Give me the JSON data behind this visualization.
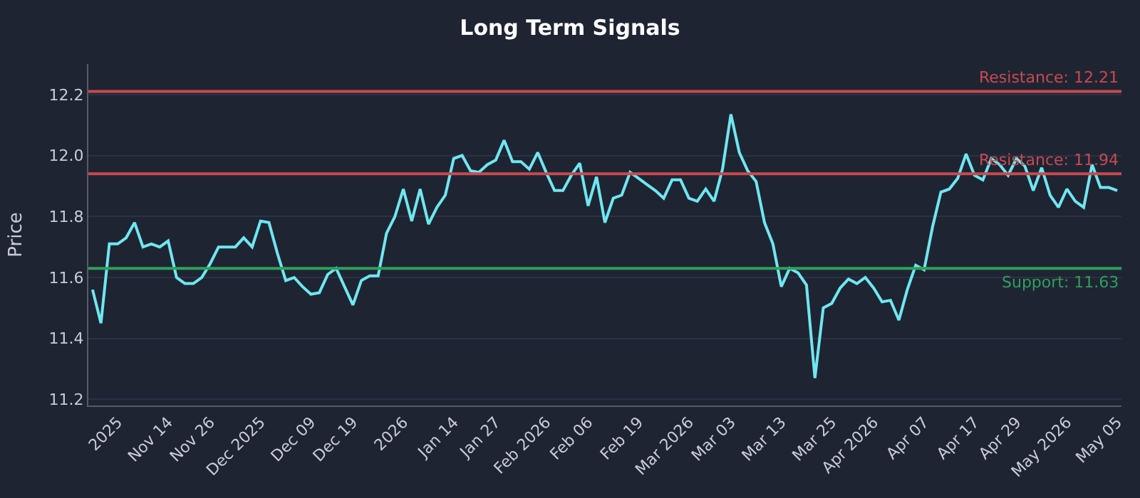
{
  "chart_data": {
    "type": "line",
    "title": "Long Term Signals",
    "ylabel": "Price",
    "categories": [
      null,
      null,
      null,
      "2025",
      null,
      null,
      null,
      null,
      null,
      "Nov 14",
      null,
      null,
      null,
      null,
      "Nov 26",
      null,
      null,
      null,
      null,
      null,
      "Dec 2025",
      null,
      null,
      null,
      null,
      null,
      "Dec 09",
      null,
      null,
      null,
      null,
      "Dec 19",
      null,
      null,
      null,
      null,
      null,
      "2026",
      null,
      null,
      null,
      null,
      null,
      "Jan 14",
      null,
      null,
      null,
      null,
      "Jan 27",
      null,
      null,
      null,
      null,
      null,
      "Feb 2026",
      null,
      null,
      null,
      null,
      "Feb 06",
      null,
      null,
      null,
      null,
      null,
      "Feb 19",
      null,
      null,
      null,
      null,
      null,
      "Mar 2026",
      null,
      null,
      null,
      null,
      "Mar 03",
      null,
      null,
      null,
      null,
      null,
      "Mar 13",
      null,
      null,
      null,
      null,
      null,
      "Mar 25",
      null,
      null,
      null,
      null,
      "Apr 2026",
      null,
      null,
      null,
      null,
      null,
      "Apr 07",
      null,
      null,
      null,
      null,
      null,
      "Apr 17",
      null,
      null,
      null,
      null,
      "Apr 29",
      null,
      null,
      null,
      null,
      null,
      "May 2026",
      null,
      null,
      null,
      null,
      null,
      "May 05"
    ],
    "series": [
      {
        "color": "#6ee7f0",
        "values": [
          11.56,
          11.45,
          11.71,
          11.71,
          11.73,
          11.78,
          11.7,
          11.71,
          11.7,
          11.72,
          11.6,
          11.58,
          11.58,
          11.6,
          11.645,
          11.7,
          11.7,
          11.7,
          11.73,
          11.7,
          11.785,
          11.78,
          11.68,
          11.59,
          11.6,
          11.57,
          11.545,
          11.55,
          11.61,
          11.63,
          11.57,
          11.51,
          11.59,
          11.605,
          11.605,
          11.745,
          11.8,
          11.89,
          11.785,
          11.89,
          11.775,
          11.83,
          11.87,
          11.99,
          12.0,
          11.95,
          11.945,
          11.97,
          11.985,
          12.05,
          11.98,
          11.98,
          11.955,
          12.01,
          11.945,
          11.885,
          11.885,
          11.935,
          11.975,
          11.835,
          11.93,
          11.78,
          11.86,
          11.87,
          11.945,
          11.925,
          11.905,
          11.885,
          11.86,
          11.92,
          11.92,
          11.86,
          11.85,
          11.89,
          11.85,
          11.955,
          12.135,
          12.01,
          11.95,
          11.915,
          11.78,
          11.71,
          11.57,
          11.63,
          11.615,
          11.575,
          11.27,
          11.5,
          11.515,
          11.565,
          11.595,
          11.58,
          11.6,
          11.565,
          11.52,
          11.525,
          11.46,
          11.56,
          11.64,
          11.625,
          11.765,
          11.88,
          11.89,
          11.925,
          12.005,
          11.935,
          11.92,
          11.99,
          11.97,
          11.935,
          11.99,
          11.965,
          11.885,
          11.96,
          11.87,
          11.83,
          11.89,
          11.85,
          11.83,
          11.97,
          11.895,
          11.895,
          11.885
        ]
      }
    ],
    "ylim": [
      11.18,
      12.3
    ],
    "yticks": [
      {
        "value": 11.2,
        "label": "11.2"
      },
      {
        "value": 11.4,
        "label": "11.4"
      },
      {
        "value": 11.6,
        "label": "11.6"
      },
      {
        "value": 11.8,
        "label": "11.8"
      },
      {
        "value": 12,
        "label": "12.0"
      },
      {
        "value": 12.2,
        "label": "12.2"
      }
    ],
    "grid": "y",
    "legend": false,
    "marker": "none",
    "line_style": "solid",
    "ref_lines": [
      {
        "axis": "y",
        "value": 12.21,
        "label": "Resistance: 12.21",
        "color": "#c94a4f"
      },
      {
        "axis": "y",
        "value": 11.94,
        "label": "Resistance: 11.94",
        "color": "#c94a4f"
      },
      {
        "axis": "y",
        "value": 11.63,
        "label": "Support: 11.63",
        "color": "#2ea05a"
      }
    ]
  }
}
